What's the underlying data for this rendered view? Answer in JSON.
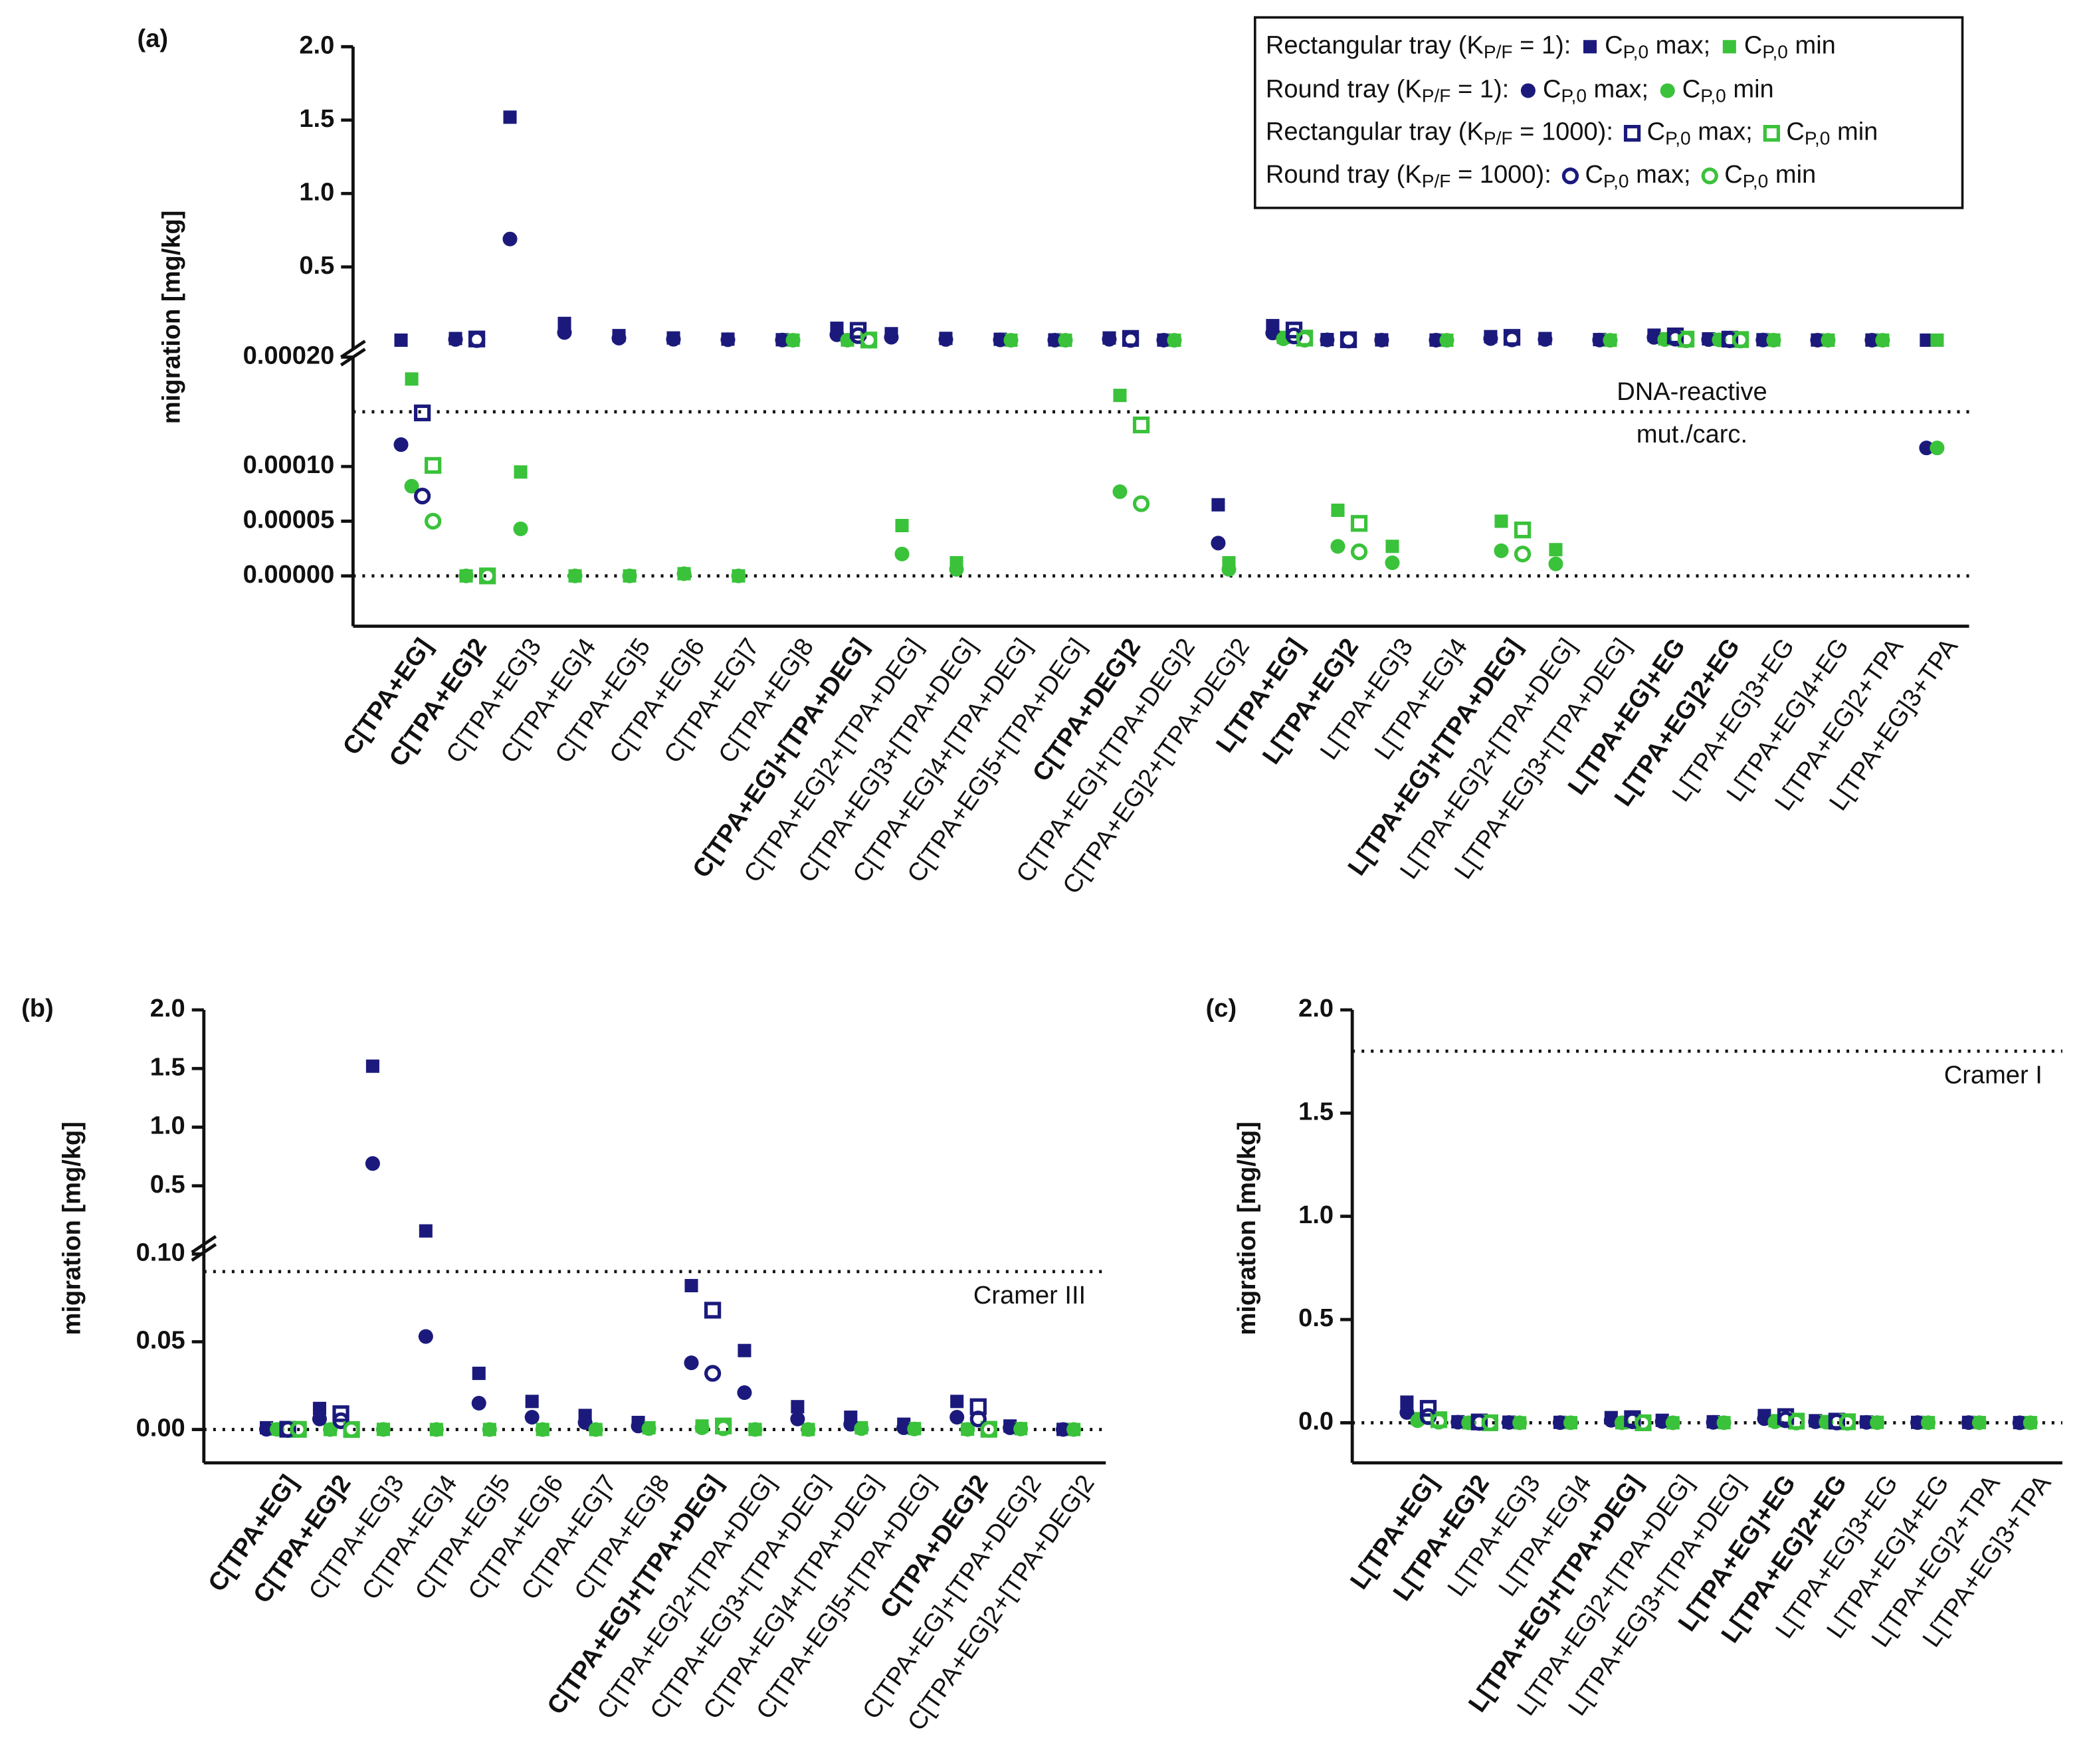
{
  "chart_data": [
    {
      "type": "scatter",
      "panel_label": "(a)",
      "y_label": "migration [mg/kg]",
      "categories": [
        "C[TPA+EG]",
        "C[TPA+EG]2",
        "C[TPA+EG]3",
        "C[TPA+EG]4",
        "C[TPA+EG]5",
        "C[TPA+EG]6",
        "C[TPA+EG]7",
        "C[TPA+EG]8",
        "C[TPA+EG]+[TPA+DEG]",
        "C[TPA+EG]2+[TPA+DEG]",
        "C[TPA+EG]3+[TPA+DEG]",
        "C[TPA+EG]4+[TPA+DEG]",
        "C[TPA+EG]5+[TPA+DEG]",
        "C[TPA+DEG]2",
        "C[TPA+EG]+[TPA+DEG]2",
        "C[TPA+EG]2+[TPA+DEG]2",
        "L[TPA+EG]",
        "L[TPA+EG]2",
        "L[TPA+EG]3",
        "L[TPA+EG]4",
        "L[TPA+EG]+[TPA+DEG]",
        "L[TPA+EG]2+[TPA+DEG]",
        "L[TPA+EG]3+[TPA+DEG]",
        "L[TPA+EG]+EG",
        "L[TPA+EG]2+EG",
        "L[TPA+EG]3+EG",
        "L[TPA+EG]4+EG",
        "L[TPA+EG]2+TPA",
        "L[TPA+EG]3+TPA"
      ],
      "bold": [
        true,
        true,
        false,
        false,
        false,
        false,
        false,
        false,
        true,
        false,
        false,
        false,
        false,
        true,
        false,
        false,
        true,
        true,
        false,
        false,
        true,
        false,
        false,
        true,
        true,
        false,
        false,
        false,
        false
      ],
      "y_segments": [
        {
          "ylim": [
            -4.6e-05,
            0.0002
          ],
          "yticks": [
            {
              "value": 0,
              "label": "0.00000"
            },
            5e-05,
            {
              "value": 0.0001,
              "label": "0.00010"
            },
            {
              "value": 0.0002,
              "label": "0.00020"
            }
          ]
        },
        {
          "ylim": [
            -0.06,
            2.0
          ],
          "yticks": [
            0.5,
            {
              "value": 1.0,
              "label": "1.0"
            },
            1.5,
            {
              "value": 2.0,
              "label": "2.0"
            }
          ]
        }
      ],
      "reference_lines": [
        {
          "value": 0
        },
        {
          "value": 0.00015,
          "label": [
            "DNA-reactive",
            "mut./carc."
          ]
        }
      ],
      "legend": [
        {
          "title": [
            "Rectangular tray (K",
            "P/F",
            " = 1): "
          ],
          "entries": [
            [
              "C",
              "P,0",
              " max; "
            ],
            [
              "C",
              "P,0",
              " min"
            ]
          ]
        },
        {
          "title": [
            "Round tray (K",
            "P/F",
            " = 1): "
          ],
          "entries": [
            [
              "C",
              "P,0",
              " max; "
            ],
            [
              "C",
              "P,0",
              " min"
            ]
          ]
        },
        {
          "title": [
            "Rectangular tray (K",
            "P/F",
            " = 1000): "
          ],
          "entries": [
            [
              "C",
              "P,0",
              " max; "
            ],
            [
              "C",
              "P,0",
              " min"
            ]
          ]
        },
        {
          "title": [
            "Round tray (K",
            "P/F",
            " = 1000): "
          ],
          "entries": [
            [
              "C",
              "P,0",
              " max; "
            ],
            [
              "C",
              "P,0",
              " min"
            ]
          ]
        }
      ],
      "series": [
        {
          "color": "#1b1a7c",
          "marker": "square",
          "filled": true,
          "values": [
            0.001,
            0.012,
            1.52,
            0.115,
            0.032,
            0.016,
            0.008,
            0.004,
            0.082,
            0.045,
            0.013,
            0.007,
            0.003,
            0.016,
            0.002,
            6.5e-05,
            0.1,
            0.005,
            0.003,
            0.002,
            0.025,
            0.012,
            0.005,
            0.035,
            0.01,
            0.004,
            0.002,
            0.002,
            0.001
          ]
        },
        {
          "color": "#3ac23a",
          "marker": "square",
          "filled": true,
          "values": [
            0.00018,
            0,
            9.5e-05,
            0,
            0,
            2e-06,
            0,
            0.001,
            0.002,
            4.6e-05,
            1.2e-05,
            0.001,
            0.0005,
            0.000165,
            0.0005,
            1.2e-05,
            0.02,
            6e-05,
            2.7e-05,
            0.0005,
            5e-05,
            2.4e-05,
            0.0006,
            0.01,
            0.006,
            0.002,
            0.001,
            0.001,
            0.001
          ]
        },
        {
          "color": "#1b1a7c",
          "marker": "circle",
          "filled": true,
          "values": [
            0.00012,
            0.006,
            0.69,
            0.053,
            0.015,
            0.007,
            0.004,
            0.002,
            0.038,
            0.021,
            0.006,
            0.003,
            0.001,
            0.007,
            0.001,
            3e-05,
            0.05,
            0.003,
            0.0015,
            0.001,
            0.012,
            0.006,
            0.002,
            0.02,
            0.005,
            0.002,
            0.001,
            0.001,
            0.000117
          ]
        },
        {
          "color": "#3ac23a",
          "marker": "circle",
          "filled": true,
          "values": [
            8.2e-05,
            0,
            4.3e-05,
            0,
            0,
            2e-06,
            0,
            0.0005,
            0.001,
            2e-05,
            6e-06,
            0.0005,
            0.0003,
            7.7e-05,
            0.0003,
            6e-06,
            0.01,
            2.7e-05,
            1.2e-05,
            0.0003,
            2.3e-05,
            1.1e-05,
            0.0003,
            0.005,
            0.003,
            0.001,
            0.0005,
            0.0005,
            0.000117
          ]
        },
        {
          "color": "#1b1a7c",
          "marker": "square",
          "filled": false,
          "values": [
            0.000149,
            0.009,
            null,
            null,
            null,
            null,
            null,
            null,
            0.068,
            null,
            null,
            null,
            null,
            0.013,
            null,
            null,
            0.07,
            0.004,
            null,
            null,
            0.02,
            null,
            null,
            0.03,
            0.008,
            null,
            null,
            null,
            null
          ]
        },
        {
          "color": "#3ac23a",
          "marker": "square",
          "filled": false,
          "values": [
            0.000101,
            0,
            null,
            null,
            null,
            null,
            null,
            null,
            0.002,
            null,
            null,
            null,
            null,
            0.000138,
            null,
            null,
            0.015,
            4.8e-05,
            null,
            null,
            4.2e-05,
            null,
            null,
            0.008,
            0.005,
            null,
            null,
            null,
            null
          ]
        },
        {
          "color": "#1b1a7c",
          "marker": "circle",
          "filled": false,
          "values": [
            7.3e-05,
            0.005,
            null,
            null,
            null,
            null,
            null,
            null,
            0.032,
            null,
            null,
            null,
            null,
            0.006,
            null,
            null,
            0.03,
            0.002,
            null,
            null,
            0.01,
            null,
            null,
            0.015,
            0.004,
            null,
            null,
            null,
            null
          ]
        },
        {
          "color": "#3ac23a",
          "marker": "circle",
          "filled": false,
          "values": [
            5e-05,
            0,
            null,
            null,
            null,
            null,
            null,
            null,
            0.001,
            null,
            null,
            null,
            null,
            6.6e-05,
            null,
            null,
            0.008,
            2.2e-05,
            null,
            null,
            2e-05,
            null,
            null,
            0.004,
            0.0025,
            null,
            null,
            null,
            null
          ]
        }
      ]
    },
    {
      "type": "scatter",
      "panel_label": "(b)",
      "y_label": "migration [mg/kg]",
      "categories": [
        "C[TPA+EG]",
        "C[TPA+EG]2",
        "C[TPA+EG]3",
        "C[TPA+EG]4",
        "C[TPA+EG]5",
        "C[TPA+EG]6",
        "C[TPA+EG]7",
        "C[TPA+EG]8",
        "C[TPA+EG]+[TPA+DEG]",
        "C[TPA+EG]2+[TPA+DEG]",
        "C[TPA+EG]3+[TPA+DEG]",
        "C[TPA+EG]4+[TPA+DEG]",
        "C[TPA+EG]5+[TPA+DEG]",
        "C[TPA+DEG]2",
        "C[TPA+EG]+[TPA+DEG]2",
        "C[TPA+EG]2+[TPA+DEG]2"
      ],
      "bold": [
        true,
        true,
        false,
        false,
        false,
        false,
        false,
        false,
        true,
        false,
        false,
        false,
        false,
        true,
        false,
        false
      ],
      "y_segments": [
        {
          "ylim": [
            -0.019,
            0.104
          ],
          "yticks": [
            {
              "value": 0,
              "label": "0.00"
            },
            0.05,
            {
              "value": 0.1,
              "label": "0.10"
            }
          ]
        },
        {
          "ylim": [
            -0.045,
            2.0
          ],
          "yticks": [
            0.5,
            {
              "value": 1.0,
              "label": "1.0"
            },
            1.5,
            {
              "value": 2.0,
              "label": "2.0"
            }
          ]
        }
      ],
      "reference_lines": [
        {
          "value": 0
        },
        {
          "value": 0.09,
          "label": [
            "Cramer III"
          ]
        }
      ],
      "series": [
        {
          "color": "#1b1a7c",
          "marker": "square",
          "filled": true,
          "values": [
            0.001,
            0.012,
            1.52,
            0.115,
            0.032,
            0.016,
            0.008,
            0.004,
            0.082,
            0.045,
            0.013,
            0.007,
            0.003,
            0.016,
            0.002,
            6.5e-05
          ]
        },
        {
          "color": "#3ac23a",
          "marker": "square",
          "filled": true,
          "values": [
            0.00018,
            0,
            9.5e-05,
            0,
            0,
            2e-06,
            0,
            0.001,
            0.002,
            4.6e-05,
            1.2e-05,
            0.001,
            0.0005,
            0.000165,
            0.0005,
            1.2e-05
          ]
        },
        {
          "color": "#1b1a7c",
          "marker": "circle",
          "filled": true,
          "values": [
            0.00012,
            0.006,
            0.69,
            0.053,
            0.015,
            0.007,
            0.004,
            0.002,
            0.038,
            0.021,
            0.006,
            0.003,
            0.001,
            0.007,
            0.001,
            3e-05
          ]
        },
        {
          "color": "#3ac23a",
          "marker": "circle",
          "filled": true,
          "values": [
            8.2e-05,
            0,
            4.3e-05,
            0,
            0,
            2e-06,
            0,
            0.0005,
            0.001,
            2e-05,
            6e-06,
            0.0005,
            0.0003,
            7.7e-05,
            0.0003,
            6e-06
          ]
        },
        {
          "color": "#1b1a7c",
          "marker": "square",
          "filled": false,
          "values": [
            0.000149,
            0.009,
            null,
            null,
            null,
            null,
            null,
            null,
            0.068,
            null,
            null,
            null,
            null,
            0.013,
            null,
            null
          ]
        },
        {
          "color": "#3ac23a",
          "marker": "square",
          "filled": false,
          "values": [
            0.000101,
            0,
            null,
            null,
            null,
            null,
            null,
            null,
            0.002,
            null,
            null,
            null,
            null,
            0.000138,
            null,
            null
          ]
        },
        {
          "color": "#1b1a7c",
          "marker": "circle",
          "filled": false,
          "values": [
            7.3e-05,
            0.005,
            null,
            null,
            null,
            null,
            null,
            null,
            0.032,
            null,
            null,
            null,
            null,
            0.006,
            null,
            null
          ]
        },
        {
          "color": "#3ac23a",
          "marker": "circle",
          "filled": false,
          "values": [
            5e-05,
            0,
            null,
            null,
            null,
            null,
            null,
            null,
            0.001,
            null,
            null,
            null,
            null,
            6.6e-05,
            null,
            null
          ]
        }
      ]
    },
    {
      "type": "scatter",
      "panel_label": "(c)",
      "y_label": "migration [mg/kg]",
      "categories": [
        "L[TPA+EG]",
        "L[TPA+EG]2",
        "L[TPA+EG]3",
        "L[TPA+EG]4",
        "L[TPA+EG]+[TPA+DEG]",
        "L[TPA+EG]2+[TPA+DEG]",
        "L[TPA+EG]3+[TPA+DEG]",
        "L[TPA+EG]+EG",
        "L[TPA+EG]2+EG",
        "L[TPA+EG]3+EG",
        "L[TPA+EG]4+EG",
        "L[TPA+EG]2+TPA",
        "L[TPA+EG]3+TPA"
      ],
      "bold": [
        true,
        true,
        false,
        false,
        true,
        false,
        false,
        true,
        true,
        false,
        false,
        false,
        false
      ],
      "y_segments": [
        {
          "ylim": [
            -0.194,
            2.0
          ],
          "yticks": [
            {
              "value": 0,
              "label": "0.0"
            },
            0.5,
            {
              "value": 1.0,
              "label": "1.0"
            },
            1.5,
            {
              "value": 2.0,
              "label": "2.0"
            }
          ]
        }
      ],
      "reference_lines": [
        {
          "value": 0
        },
        {
          "value": 1.8,
          "label": [
            "Cramer I"
          ]
        }
      ],
      "series": [
        {
          "color": "#1b1a7c",
          "marker": "square",
          "filled": true,
          "values": [
            0.1,
            0.005,
            0.003,
            0.002,
            0.025,
            0.012,
            0.005,
            0.035,
            0.01,
            0.004,
            0.002,
            0.002,
            0.001
          ]
        },
        {
          "color": "#3ac23a",
          "marker": "square",
          "filled": true,
          "values": [
            0.02,
            6e-05,
            2.7e-05,
            0.0005,
            5e-05,
            2.4e-05,
            0.0006,
            0.01,
            0.006,
            0.002,
            0.001,
            0.001,
            0.001
          ]
        },
        {
          "color": "#1b1a7c",
          "marker": "circle",
          "filled": true,
          "values": [
            0.05,
            0.003,
            0.0015,
            0.001,
            0.012,
            0.006,
            0.002,
            0.02,
            0.005,
            0.002,
            0.001,
            0.001,
            0.000117
          ]
        },
        {
          "color": "#3ac23a",
          "marker": "circle",
          "filled": true,
          "values": [
            0.01,
            2.7e-05,
            1.2e-05,
            0.0003,
            2.3e-05,
            1.1e-05,
            0.0003,
            0.005,
            0.003,
            0.001,
            0.0005,
            0.0005,
            0.000117
          ]
        },
        {
          "color": "#1b1a7c",
          "marker": "square",
          "filled": false,
          "values": [
            0.07,
            0.004,
            null,
            null,
            0.02,
            null,
            null,
            0.03,
            0.008,
            null,
            null,
            null,
            null
          ]
        },
        {
          "color": "#3ac23a",
          "marker": "square",
          "filled": false,
          "values": [
            0.015,
            4.8e-05,
            null,
            null,
            4.2e-05,
            null,
            null,
            0.008,
            0.005,
            null,
            null,
            null,
            null
          ]
        },
        {
          "color": "#1b1a7c",
          "marker": "circle",
          "filled": false,
          "values": [
            0.03,
            0.002,
            null,
            null,
            0.01,
            null,
            null,
            0.015,
            0.004,
            null,
            null,
            null,
            null
          ]
        },
        {
          "color": "#3ac23a",
          "marker": "circle",
          "filled": false,
          "values": [
            0.008,
            2.2e-05,
            null,
            null,
            2e-05,
            null,
            null,
            0.004,
            0.0025,
            null,
            null,
            null,
            null
          ]
        }
      ]
    }
  ]
}
